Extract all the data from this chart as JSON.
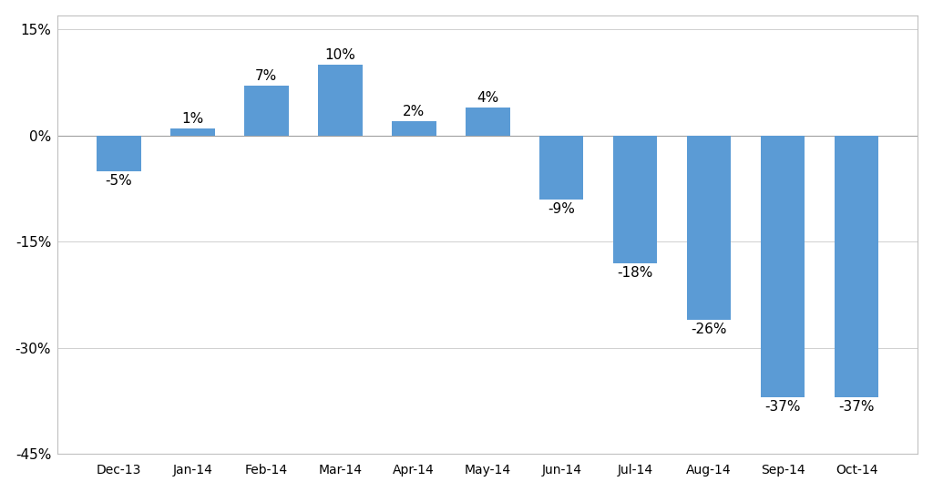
{
  "categories": [
    "Dec-13",
    "Jan-14",
    "Feb-14",
    "Mar-14",
    "Apr-14",
    "May-14",
    "Jun-14",
    "Jul-14",
    "Aug-14",
    "Sep-14",
    "Oct-14"
  ],
  "values": [
    -5,
    1,
    7,
    10,
    2,
    4,
    -9,
    -18,
    -26,
    -37,
    -37
  ],
  "bar_color": "#5B9BD5",
  "ylim": [
    -45,
    17
  ],
  "yticks": [
    -45,
    -30,
    -15,
    0,
    15
  ],
  "ytick_labels": [
    "-45%",
    "-30%",
    "-15%",
    "0%",
    "15%"
  ],
  "background_color": "#ffffff",
  "plot_bg_color": "#ffffff",
  "label_fontsize": 11,
  "tick_fontsize": 11,
  "border_color": "#c0c0c0",
  "grid_color": "#d0d0d0",
  "zero_line_color": "#a0a0a0"
}
